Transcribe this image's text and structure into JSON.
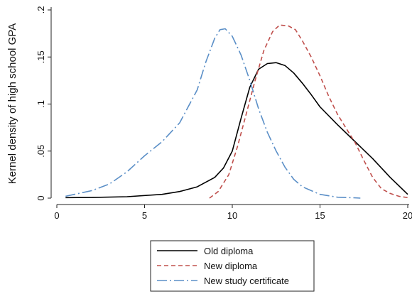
{
  "chart_data": {
    "type": "line",
    "title": "",
    "xlabel": "",
    "ylabel": "Kernel density of high school GPA",
    "xlim": [
      0,
      20
    ],
    "ylim": [
      0,
      0.2
    ],
    "x_ticks": [
      0,
      5,
      10,
      15,
      20
    ],
    "x_tick_labels": [
      "0",
      "5",
      "10",
      "15",
      "20"
    ],
    "y_ticks": [
      0,
      0.05,
      0.1,
      0.15,
      0.2
    ],
    "y_tick_labels": [
      "0",
      ".05",
      ".1",
      ".15",
      ".2"
    ],
    "grid": false,
    "legend_position": "bottom",
    "series": [
      {
        "name": "Old diploma",
        "color": "#000000",
        "line_style": "solid",
        "x": [
          0.5,
          2,
          4,
          6,
          7,
          8,
          9,
          9.5,
          10,
          10.5,
          11,
          11.5,
          12,
          12.5,
          13,
          13.5,
          14,
          14.5,
          15,
          16,
          17,
          18,
          19,
          20
        ],
        "y": [
          0.0005,
          0.0007,
          0.0015,
          0.004,
          0.007,
          0.012,
          0.022,
          0.032,
          0.05,
          0.085,
          0.118,
          0.137,
          0.143,
          0.144,
          0.141,
          0.133,
          0.122,
          0.11,
          0.097,
          0.078,
          0.06,
          0.042,
          0.022,
          0.004
        ]
      },
      {
        "name": "New diploma",
        "color": "#c0504d",
        "line_style": "dashed",
        "x": [
          8.7,
          9.2,
          9.8,
          10.3,
          10.8,
          11.3,
          11.8,
          12.3,
          12.7,
          13.2,
          13.6,
          14,
          14.5,
          15,
          15.5,
          16,
          16.5,
          17,
          17.5,
          18,
          18.5,
          19,
          19.5,
          20
        ],
        "y": [
          0.0,
          0.007,
          0.025,
          0.055,
          0.09,
          0.125,
          0.157,
          0.177,
          0.184,
          0.183,
          0.179,
          0.167,
          0.15,
          0.13,
          0.108,
          0.089,
          0.074,
          0.059,
          0.04,
          0.022,
          0.01,
          0.005,
          0.002,
          0.0005
        ]
      },
      {
        "name": "New study certificate",
        "color": "#5b8fc7",
        "line_style": "dash-dot",
        "x": [
          0.5,
          1,
          2,
          3,
          4,
          5,
          6,
          7,
          8,
          8.5,
          9,
          9.3,
          9.6,
          10,
          10.5,
          11,
          11.5,
          12,
          12.5,
          13,
          13.5,
          14,
          15,
          16,
          17,
          17.3
        ],
        "y": [
          0.002,
          0.004,
          0.008,
          0.015,
          0.028,
          0.045,
          0.06,
          0.08,
          0.115,
          0.145,
          0.17,
          0.179,
          0.18,
          0.172,
          0.152,
          0.125,
          0.095,
          0.07,
          0.05,
          0.033,
          0.02,
          0.012,
          0.004,
          0.001,
          0.0003,
          0.0
        ]
      }
    ]
  }
}
